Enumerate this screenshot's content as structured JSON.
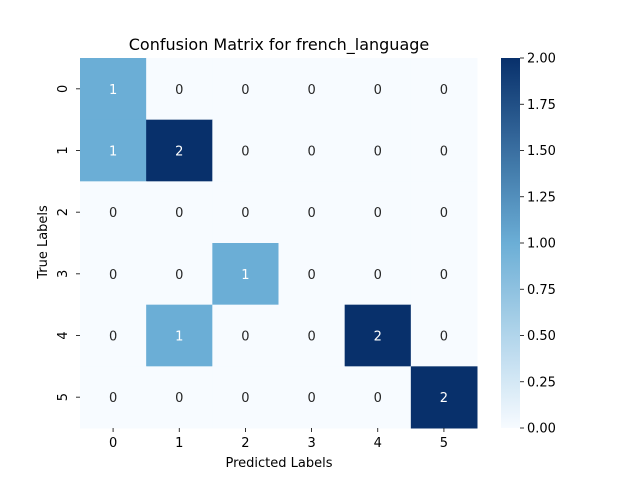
{
  "chart_data": {
    "type": "heatmap",
    "title": "Confusion Matrix for french_language",
    "xlabel": "Predicted Labels",
    "ylabel": "True Labels",
    "x_categories": [
      "0",
      "1",
      "2",
      "3",
      "4",
      "5"
    ],
    "y_categories": [
      "0",
      "1",
      "2",
      "3",
      "4",
      "5"
    ],
    "values": [
      [
        1,
        0,
        0,
        0,
        0,
        0
      ],
      [
        1,
        2,
        0,
        0,
        0,
        0
      ],
      [
        0,
        0,
        0,
        0,
        0,
        0
      ],
      [
        0,
        0,
        1,
        0,
        0,
        0
      ],
      [
        0,
        1,
        0,
        0,
        2,
        0
      ],
      [
        0,
        0,
        0,
        0,
        0,
        2
      ]
    ],
    "vmin": 0,
    "vmax": 2,
    "colormap": "Blues",
    "colorbar_ticks": [
      "0.00",
      "0.25",
      "0.50",
      "0.75",
      "1.00",
      "1.25",
      "1.50",
      "1.75",
      "2.00"
    ],
    "colors": {
      "low": "#f7fbff",
      "mid": "#6baed6",
      "high": "#08306b",
      "text_dark": "#262626",
      "text_light": "#ffffff"
    }
  }
}
